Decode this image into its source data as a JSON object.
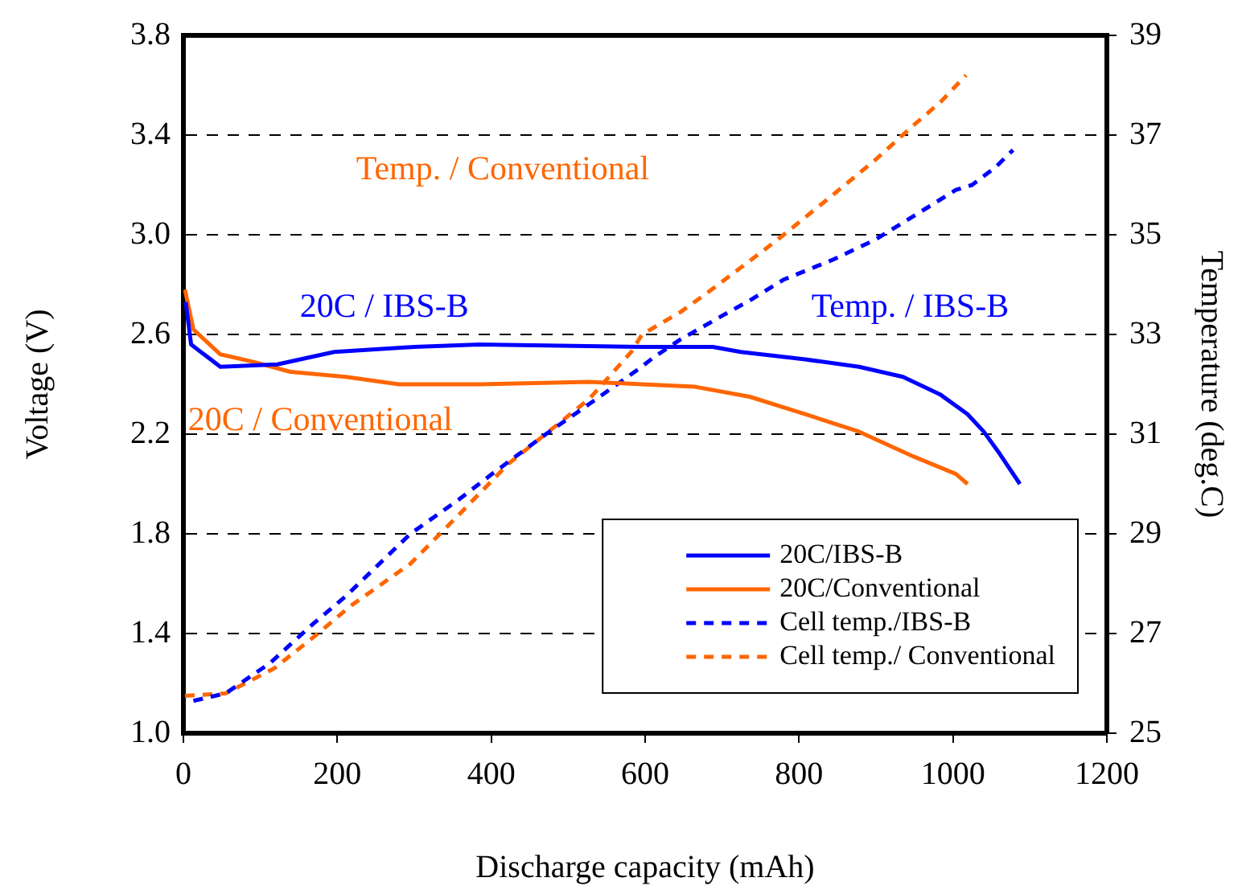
{
  "chart_data": {
    "type": "line",
    "xlabel": "Discharge capacity (mAh)",
    "ylabel": "Voltage (V)",
    "y2label": "Temperature (deg.C)",
    "xlim": [
      0,
      1200
    ],
    "xticks": [
      0,
      200,
      400,
      600,
      800,
      1000,
      1200
    ],
    "ylim": [
      1.0,
      3.8
    ],
    "yticks": [
      {
        "value": 1,
        "label": "1.0"
      },
      1.4,
      1.8,
      2.2,
      2.6,
      {
        "value": 3,
        "label": "3.0"
      },
      3.4,
      3.8
    ],
    "y2lim": [
      25,
      39
    ],
    "y2ticks": [
      25,
      27,
      29,
      31,
      33,
      35,
      37,
      39
    ],
    "grid": "y",
    "legend": "bottom right",
    "marker": "none",
    "series": [
      {
        "name": "20C/IBS-B",
        "color": "#0000ff",
        "line_style": "solid",
        "x": [
          3,
          10,
          48,
          122,
          196,
          300,
          385,
          596,
          688,
          724,
          808,
          878,
          935,
          983,
          1019,
          1040,
          1061,
          1087
        ],
        "values": [
          2.73,
          2.56,
          2.47,
          2.48,
          2.53,
          2.55,
          2.56,
          2.55,
          2.55,
          2.53,
          2.5,
          2.47,
          2.43,
          2.36,
          2.28,
          2.21,
          2.12,
          2.0
        ]
      },
      {
        "name": "20C/Conventional",
        "color": "#ff6600",
        "line_style": "solid",
        "x": [
          2,
          13,
          48,
          91,
          139,
          211,
          280,
          386,
          527,
          596,
          665,
          736,
          808,
          878,
          949,
          1004,
          1019
        ],
        "values": [
          2.78,
          2.62,
          2.52,
          2.49,
          2.45,
          2.43,
          2.4,
          2.4,
          2.41,
          2.4,
          2.39,
          2.35,
          2.28,
          2.21,
          2.11,
          2.04,
          2.0
        ]
      },
      {
        "name": "Cell temp./IBS-B",
        "color": "#0000ff",
        "line_style": "dashed",
        "axis": "y2",
        "x": [
          13,
          55,
          112,
          169,
          211,
          295,
          359,
          401,
          471,
          527,
          591,
          612,
          646,
          703,
          738,
          780,
          844,
          899,
          962,
          1004,
          1025,
          1055,
          1078
        ],
        "values": [
          25.65,
          25.8,
          26.4,
          27.2,
          27.75,
          29.0,
          29.7,
          30.2,
          31.0,
          31.6,
          32.3,
          32.55,
          32.9,
          33.4,
          33.7,
          34.1,
          34.5,
          34.9,
          35.5,
          35.9,
          36.0,
          36.35,
          36.7
        ]
      },
      {
        "name": "Cell temp./ Conventional",
        "color": "#ff6600",
        "line_style": "dashed",
        "axis": "y2",
        "x": [
          2,
          55,
          118,
          175,
          217,
          295,
          359,
          422,
          527,
          582,
          596,
          646,
          682,
          738,
          772,
          844,
          899,
          949,
          983,
          1017
        ],
        "values": [
          25.75,
          25.8,
          26.3,
          27.0,
          27.55,
          28.4,
          29.4,
          30.4,
          31.7,
          32.65,
          33.0,
          33.45,
          33.85,
          34.5,
          34.9,
          35.8,
          36.5,
          37.2,
          37.65,
          38.2
        ]
      }
    ],
    "annotations": [
      "20C / IBS-B",
      "20C / Conventional",
      "Temp. / IBS-B",
      "Temp. / Conventional"
    ]
  }
}
